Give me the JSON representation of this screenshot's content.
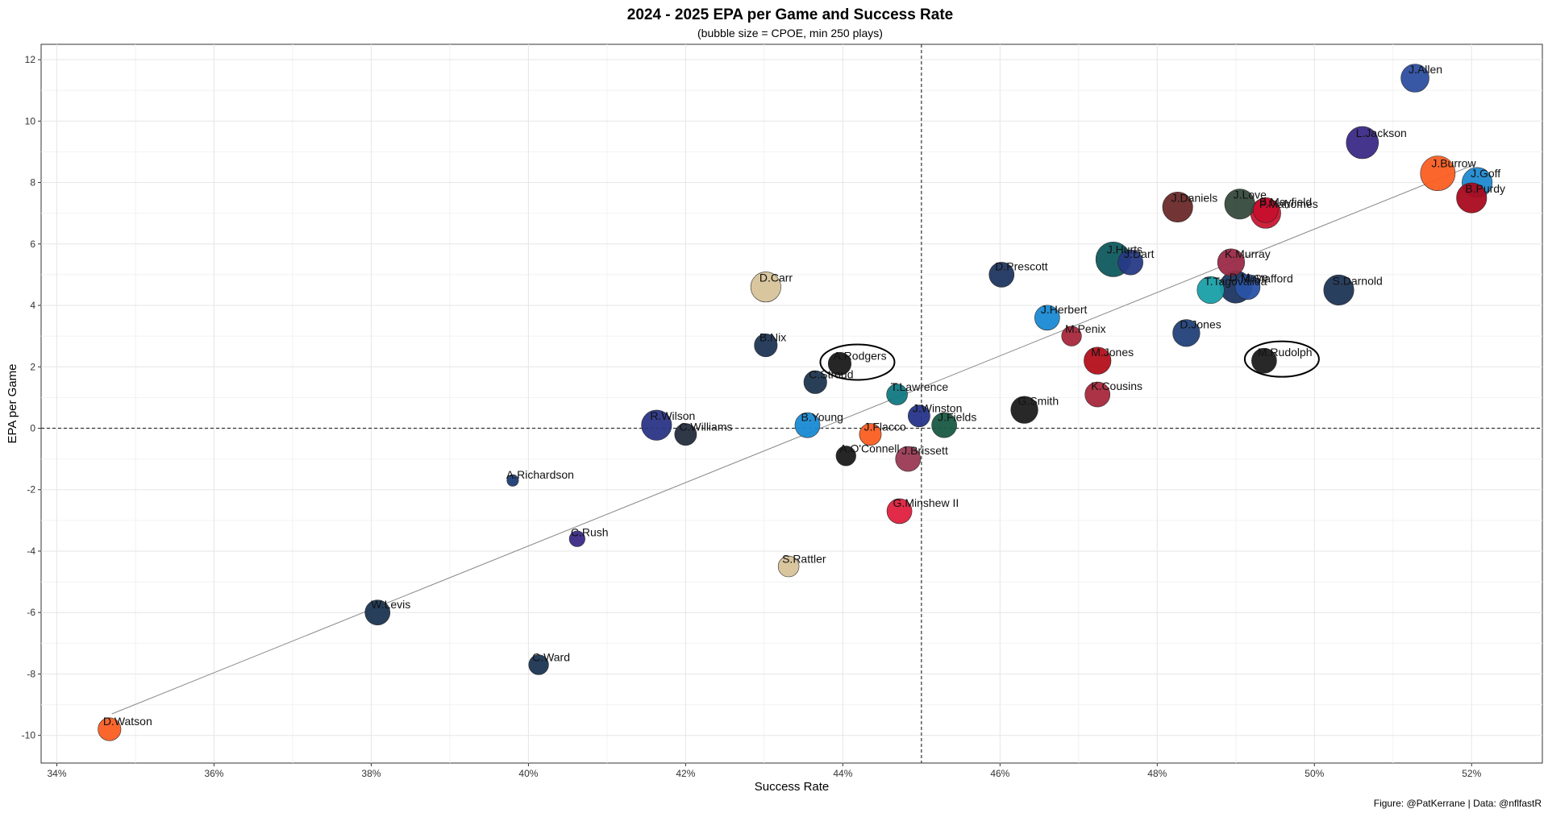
{
  "chart_data": {
    "type": "scatter",
    "title": "2024 - 2025 EPA per Game and Success Rate",
    "subtitle": "(bubble size = CPOE, min 250 plays)",
    "xlabel": "Success Rate",
    "ylabel": "EPA per Game",
    "caption": "Figure: @PatKerrane | Data: @nflfastR",
    "xlim": [
      0.338,
      0.529
    ],
    "ylim": [
      -10.9,
      12.5
    ],
    "x_ticks": [
      {
        "value": 0.34,
        "label": "34%"
      },
      {
        "value": 0.36,
        "label": "36%"
      },
      {
        "value": 0.38,
        "label": "38%"
      },
      {
        "value": 0.4,
        "label": "40%"
      },
      {
        "value": 0.42,
        "label": "42%"
      },
      {
        "value": 0.44,
        "label": "44%"
      },
      {
        "value": 0.46,
        "label": "46%"
      },
      {
        "value": 0.48,
        "label": "48%"
      },
      {
        "value": 0.5,
        "label": "50%"
      },
      {
        "value": 0.52,
        "label": "52%"
      }
    ],
    "y_ticks": [
      {
        "value": -10,
        "label": "-10"
      },
      {
        "value": -8,
        "label": "-8"
      },
      {
        "value": -6,
        "label": "-6"
      },
      {
        "value": -4,
        "label": "-4"
      },
      {
        "value": -2,
        "label": "-2"
      },
      {
        "value": 0,
        "label": "0"
      },
      {
        "value": 2,
        "label": "2"
      },
      {
        "value": 4,
        "label": "4"
      },
      {
        "value": 6,
        "label": "6"
      },
      {
        "value": 8,
        "label": "8"
      },
      {
        "value": 10,
        "label": "10"
      },
      {
        "value": 12,
        "label": "12"
      }
    ],
    "grid": true,
    "reference_lines": {
      "x": 0.45,
      "y": 0
    },
    "trend_line": {
      "x1": 0.347,
      "y1": -9.3,
      "x2": 0.5205,
      "y2": 8.6
    },
    "highlighted": [
      "A.Rodgers",
      "M.Rudolph"
    ],
    "points": [
      {
        "name": "J.Allen",
        "x": 0.5128,
        "y": 11.4,
        "size": 4.2,
        "color": "#2e4fa0"
      },
      {
        "name": "L.Jackson",
        "x": 0.5061,
        "y": 9.3,
        "size": 5.0,
        "color": "#3c2b86"
      },
      {
        "name": "J.Burrow",
        "x": 0.5157,
        "y": 8.3,
        "size": 5.5,
        "color": "#fb5e22"
      },
      {
        "name": "J.Goff",
        "x": 0.5207,
        "y": 8.0,
        "size": 4.6,
        "color": "#1f8bd1"
      },
      {
        "name": "B.Purdy",
        "x": 0.52,
        "y": 7.5,
        "size": 4.6,
        "color": "#aa0b1e"
      },
      {
        "name": "P.Mahomes",
        "x": 0.4938,
        "y": 7.0,
        "size": 4.6,
        "color": "#cc1732"
      },
      {
        "name": "B.Mayfield",
        "x": 0.4938,
        "y": 7.1,
        "size": 3.6,
        "color": "#c7102e"
      },
      {
        "name": "J.Love",
        "x": 0.4905,
        "y": 7.3,
        "size": 4.6,
        "color": "#354a3d"
      },
      {
        "name": "J.Daniels",
        "x": 0.4826,
        "y": 7.2,
        "size": 4.6,
        "color": "#6b2a2a"
      },
      {
        "name": "J.Hurts",
        "x": 0.4744,
        "y": 5.5,
        "size": 5.5,
        "color": "#0f5a5f"
      },
      {
        "name": "J.Dart",
        "x": 0.4766,
        "y": 5.4,
        "size": 3.6,
        "color": "#263a86"
      },
      {
        "name": "K.Murray",
        "x": 0.4894,
        "y": 5.4,
        "size": 4.0,
        "color": "#9a2b47"
      },
      {
        "name": "M.Stafford",
        "x": 0.4915,
        "y": 4.6,
        "size": 3.6,
        "color": "#2a53a7"
      },
      {
        "name": "D.Maye",
        "x": 0.49,
        "y": 4.6,
        "size": 5.0,
        "color": "#1d3661"
      },
      {
        "name": "T.Tagovailoa",
        "x": 0.4868,
        "y": 4.5,
        "size": 4.0,
        "color": "#1aa0a8"
      },
      {
        "name": "S.Darnold",
        "x": 0.5031,
        "y": 4.5,
        "size": 4.6,
        "color": "#1e3556"
      },
      {
        "name": "D.Prescott",
        "x": 0.4602,
        "y": 5.0,
        "size": 3.6,
        "color": "#1f3660"
      },
      {
        "name": "D.Carr",
        "x": 0.4302,
        "y": 4.6,
        "size": 4.6,
        "color": "#d7c39a"
      },
      {
        "name": "J.Herbert",
        "x": 0.466,
        "y": 3.6,
        "size": 3.6,
        "color": "#1a8bd3"
      },
      {
        "name": "D.Jones",
        "x": 0.4837,
        "y": 3.1,
        "size": 4.0,
        "color": "#22427a"
      },
      {
        "name": "M.Penix",
        "x": 0.4691,
        "y": 3.0,
        "size": 2.6,
        "color": "#a8283c"
      },
      {
        "name": "M.Jones",
        "x": 0.4724,
        "y": 2.2,
        "size": 4.0,
        "color": "#b5101c"
      },
      {
        "name": "M.Rudolph",
        "x": 0.4936,
        "y": 2.2,
        "size": 3.6,
        "color": "#1d1d1d"
      },
      {
        "name": "B.Nix",
        "x": 0.4302,
        "y": 2.7,
        "size": 3.2,
        "color": "#1f3556"
      },
      {
        "name": "A.Rodgers",
        "x": 0.4396,
        "y": 2.1,
        "size": 3.2,
        "color": "#1b1b1b"
      },
      {
        "name": "C.Stroud",
        "x": 0.4365,
        "y": 1.5,
        "size": 3.2,
        "color": "#1e3550"
      },
      {
        "name": "T.Lawrence",
        "x": 0.4469,
        "y": 1.1,
        "size": 2.8,
        "color": "#117a82"
      },
      {
        "name": "K.Cousins",
        "x": 0.4724,
        "y": 1.1,
        "size": 3.6,
        "color": "#a8283c"
      },
      {
        "name": "G.Smith",
        "x": 0.4631,
        "y": 0.6,
        "size": 4.0,
        "color": "#1d1d1d"
      },
      {
        "name": "J.Winston",
        "x": 0.4497,
        "y": 0.4,
        "size": 3.0,
        "color": "#26348a"
      },
      {
        "name": "J.Fields",
        "x": 0.4529,
        "y": 0.1,
        "size": 3.6,
        "color": "#1a5a44"
      },
      {
        "name": "R.Wilson",
        "x": 0.4163,
        "y": 0.1,
        "size": 4.6,
        "color": "#2b3585"
      },
      {
        "name": "C.Williams",
        "x": 0.42,
        "y": -0.2,
        "size": 3.0,
        "color": "#242e3e"
      },
      {
        "name": "B.Young",
        "x": 0.4355,
        "y": 0.1,
        "size": 3.6,
        "color": "#1a8bd3"
      },
      {
        "name": "J.Flacco",
        "x": 0.4435,
        "y": -0.2,
        "size": 3.0,
        "color": "#fb5e22"
      },
      {
        "name": "A.O'Connell",
        "x": 0.4404,
        "y": -0.9,
        "size": 2.6,
        "color": "#1b1b1b"
      },
      {
        "name": "J.Brissett",
        "x": 0.4483,
        "y": -1.0,
        "size": 3.6,
        "color": "#9a3a54"
      },
      {
        "name": "A.Richardson",
        "x": 0.398,
        "y": -1.7,
        "size": 1.0,
        "color": "#1e3d75"
      },
      {
        "name": "G.Minshew II",
        "x": 0.4472,
        "y": -2.7,
        "size": 3.6,
        "color": "#e0203f"
      },
      {
        "name": "C.Rush",
        "x": 0.4062,
        "y": -3.6,
        "size": 1.8,
        "color": "#3c2b86"
      },
      {
        "name": "S.Rattler",
        "x": 0.4331,
        "y": -4.5,
        "size": 2.8,
        "color": "#d7c39a"
      },
      {
        "name": "W.Levis",
        "x": 0.3808,
        "y": -6.0,
        "size": 3.6,
        "color": "#1c3552"
      },
      {
        "name": "C.Ward",
        "x": 0.4013,
        "y": -7.7,
        "size": 2.6,
        "color": "#1c3552"
      },
      {
        "name": "D.Watson",
        "x": 0.3467,
        "y": -9.8,
        "size": 3.2,
        "color": "#fb5e22"
      }
    ]
  }
}
